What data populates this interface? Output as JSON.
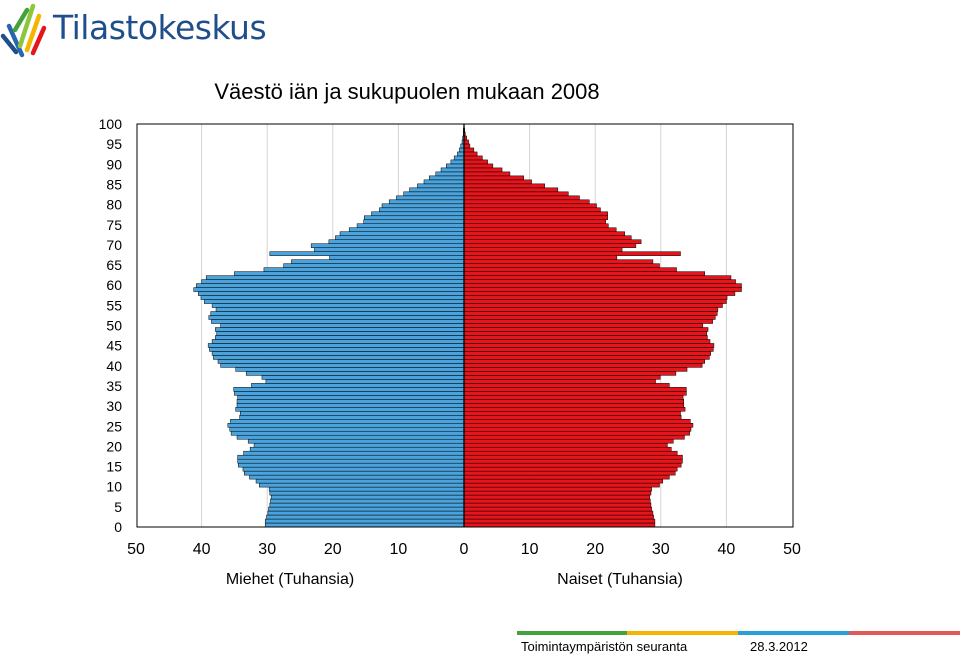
{
  "logo": {
    "name": "Tilastokeskus"
  },
  "footer": {
    "label": "Toimintaympäristön seuranta",
    "date": "28.3.2012"
  },
  "chart_data": {
    "type": "bar",
    "orientation": "horizontal",
    "title": "Väestö iän ja sukupuolen mukaan 2008",
    "grid": true,
    "xlim": [
      -50,
      50
    ],
    "ylim": [
      0,
      100
    ],
    "x_ticks": [
      "50",
      "40",
      "30",
      "20",
      "10",
      "0",
      "10",
      "20",
      "30",
      "40",
      "50"
    ],
    "y_ticks": [
      "0",
      "5",
      "10",
      "15",
      "20",
      "25",
      "30",
      "35",
      "40",
      "45",
      "50",
      "55",
      "60",
      "65",
      "70",
      "75",
      "80",
      "85",
      "90",
      "95",
      "100"
    ],
    "x_labels": [
      "Miehet (Tuhansia)",
      "Naiset (Tuhansia)"
    ],
    "colors": {
      "men": "#4aa3dc",
      "women": "#e8141b",
      "outline": "#000000"
    },
    "categories_age": [
      0,
      1,
      2,
      3,
      4,
      5,
      6,
      7,
      8,
      9,
      10,
      11,
      12,
      13,
      14,
      15,
      16,
      17,
      18,
      19,
      20,
      21,
      22,
      23,
      24,
      25,
      26,
      27,
      28,
      29,
      30,
      31,
      32,
      33,
      34,
      35,
      36,
      37,
      38,
      39,
      40,
      41,
      42,
      43,
      44,
      45,
      46,
      47,
      48,
      49,
      50,
      51,
      52,
      53,
      54,
      55,
      56,
      57,
      58,
      59,
      60,
      61,
      62,
      63,
      64,
      65,
      66,
      67,
      68,
      69,
      70,
      71,
      72,
      73,
      74,
      75,
      76,
      77,
      78,
      79,
      80,
      81,
      82,
      83,
      84,
      85,
      86,
      87,
      88,
      89,
      90,
      91,
      92,
      93,
      94,
      95,
      96,
      97,
      98,
      99,
      100
    ],
    "series": [
      {
        "name": "Miehet",
        "values": [
          30.3,
          30.3,
          30.1,
          29.9,
          29.8,
          29.6,
          29.5,
          29.4,
          29.6,
          29.7,
          31.2,
          31.7,
          32.7,
          33.5,
          33.7,
          34.4,
          34.5,
          34.5,
          33.6,
          32.6,
          32.0,
          32.9,
          34.6,
          35.5,
          35.7,
          36.0,
          35.6,
          34.2,
          34.1,
          34.8,
          34.6,
          34.6,
          34.5,
          35.0,
          35.1,
          32.4,
          30.2,
          30.8,
          33.2,
          34.8,
          37.1,
          37.5,
          38.2,
          38.4,
          38.8,
          39.0,
          38.4,
          37.9,
          37.7,
          37.9,
          37.1,
          38.5,
          38.9,
          38.6,
          37.8,
          38.4,
          39.6,
          40.1,
          40.5,
          41.2,
          40.8,
          40.0,
          39.3,
          35.0,
          30.5,
          27.5,
          26.3,
          20.5,
          29.6,
          22.8,
          23.3,
          20.6,
          19.6,
          18.9,
          17.5,
          16.3,
          15.3,
          15.2,
          14.1,
          12.9,
          12.5,
          11.4,
          10.3,
          9.2,
          8.3,
          7.1,
          6.1,
          5.3,
          4.3,
          3.5,
          2.7,
          2.0,
          1.5,
          1.0,
          0.7,
          0.5,
          0.3,
          0.2,
          0.1,
          0.1,
          0.0
        ]
      },
      {
        "name": "Naiset",
        "values": [
          29.1,
          29.1,
          28.9,
          28.8,
          28.6,
          28.5,
          28.4,
          28.3,
          28.5,
          28.6,
          29.8,
          30.3,
          31.3,
          32.2,
          32.5,
          33.1,
          33.3,
          33.3,
          32.5,
          31.6,
          31.0,
          31.9,
          33.6,
          34.4,
          34.6,
          34.9,
          34.5,
          33.1,
          33.0,
          33.7,
          33.5,
          33.5,
          33.4,
          33.9,
          33.9,
          31.3,
          29.2,
          29.9,
          32.3,
          34.0,
          36.3,
          36.7,
          37.4,
          37.6,
          38.0,
          38.1,
          37.5,
          37.1,
          37.0,
          37.2,
          36.4,
          37.9,
          38.3,
          38.6,
          38.7,
          39.4,
          40.0,
          40.1,
          41.3,
          42.3,
          42.3,
          41.4,
          40.7,
          36.7,
          32.4,
          29.8,
          28.8,
          23.3,
          33.0,
          24.1,
          26.2,
          27.0,
          25.5,
          24.5,
          23.2,
          22.0,
          21.6,
          21.9,
          21.9,
          20.8,
          20.2,
          19.1,
          17.6,
          15.9,
          14.3,
          12.3,
          10.3,
          9.1,
          7.0,
          5.8,
          4.4,
          3.6,
          2.8,
          2.0,
          1.5,
          0.9,
          0.7,
          0.4,
          0.2,
          0.1,
          0.0
        ]
      }
    ]
  }
}
